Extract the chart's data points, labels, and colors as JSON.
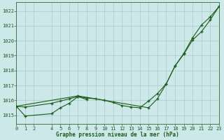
{
  "title": "Graphe pression niveau de la mer (hPa)",
  "background_color": "#cce8e8",
  "grid_color": "#aacccc",
  "line_color": "#1a5c1a",
  "marker_color": "#1a5c1a",
  "x_ticks": [
    0,
    1,
    2,
    4,
    5,
    6,
    7,
    8,
    9,
    10,
    11,
    12,
    13,
    14,
    15,
    16,
    17,
    18,
    19,
    20,
    21,
    22,
    23
  ],
  "x_tick_labels": [
    "0",
    "1",
    "2",
    "4",
    "5",
    "6",
    "7",
    "8",
    "9",
    "10",
    "11",
    "12",
    "13",
    "14",
    "15",
    "16",
    "17",
    "18",
    "19",
    "20",
    "21",
    "22",
    "23"
  ],
  "y_ticks": [
    1015,
    1016,
    1017,
    1018,
    1019,
    1020,
    1021,
    1022
  ],
  "ylim": [
    1014.4,
    1022.6
  ],
  "xlim": [
    0,
    23
  ],
  "series1_x": [
    0,
    1,
    4,
    5,
    6,
    7,
    8,
    9,
    10,
    11,
    12,
    13,
    14,
    15,
    16,
    17,
    18,
    19,
    20,
    21,
    22,
    23
  ],
  "series1_y": [
    1015.6,
    1015.55,
    1015.8,
    1015.95,
    1016.1,
    1016.25,
    1016.15,
    1016.1,
    1016.0,
    1015.85,
    1015.65,
    1015.55,
    1015.5,
    1015.95,
    1016.45,
    1017.1,
    1018.3,
    1019.1,
    1020.05,
    1020.6,
    1021.4,
    1022.3
  ],
  "series2_x": [
    0,
    1,
    4,
    5,
    6,
    7,
    8
  ],
  "series2_y": [
    1015.6,
    1014.95,
    1015.1,
    1015.5,
    1015.8,
    1016.25,
    1016.05
  ],
  "series3_x": [
    0,
    7,
    15,
    16,
    17,
    18,
    19,
    20,
    21,
    22,
    23
  ],
  "series3_y": [
    1015.6,
    1016.3,
    1015.5,
    1016.1,
    1017.1,
    1018.3,
    1019.15,
    1020.2,
    1021.05,
    1021.6,
    1022.3
  ]
}
